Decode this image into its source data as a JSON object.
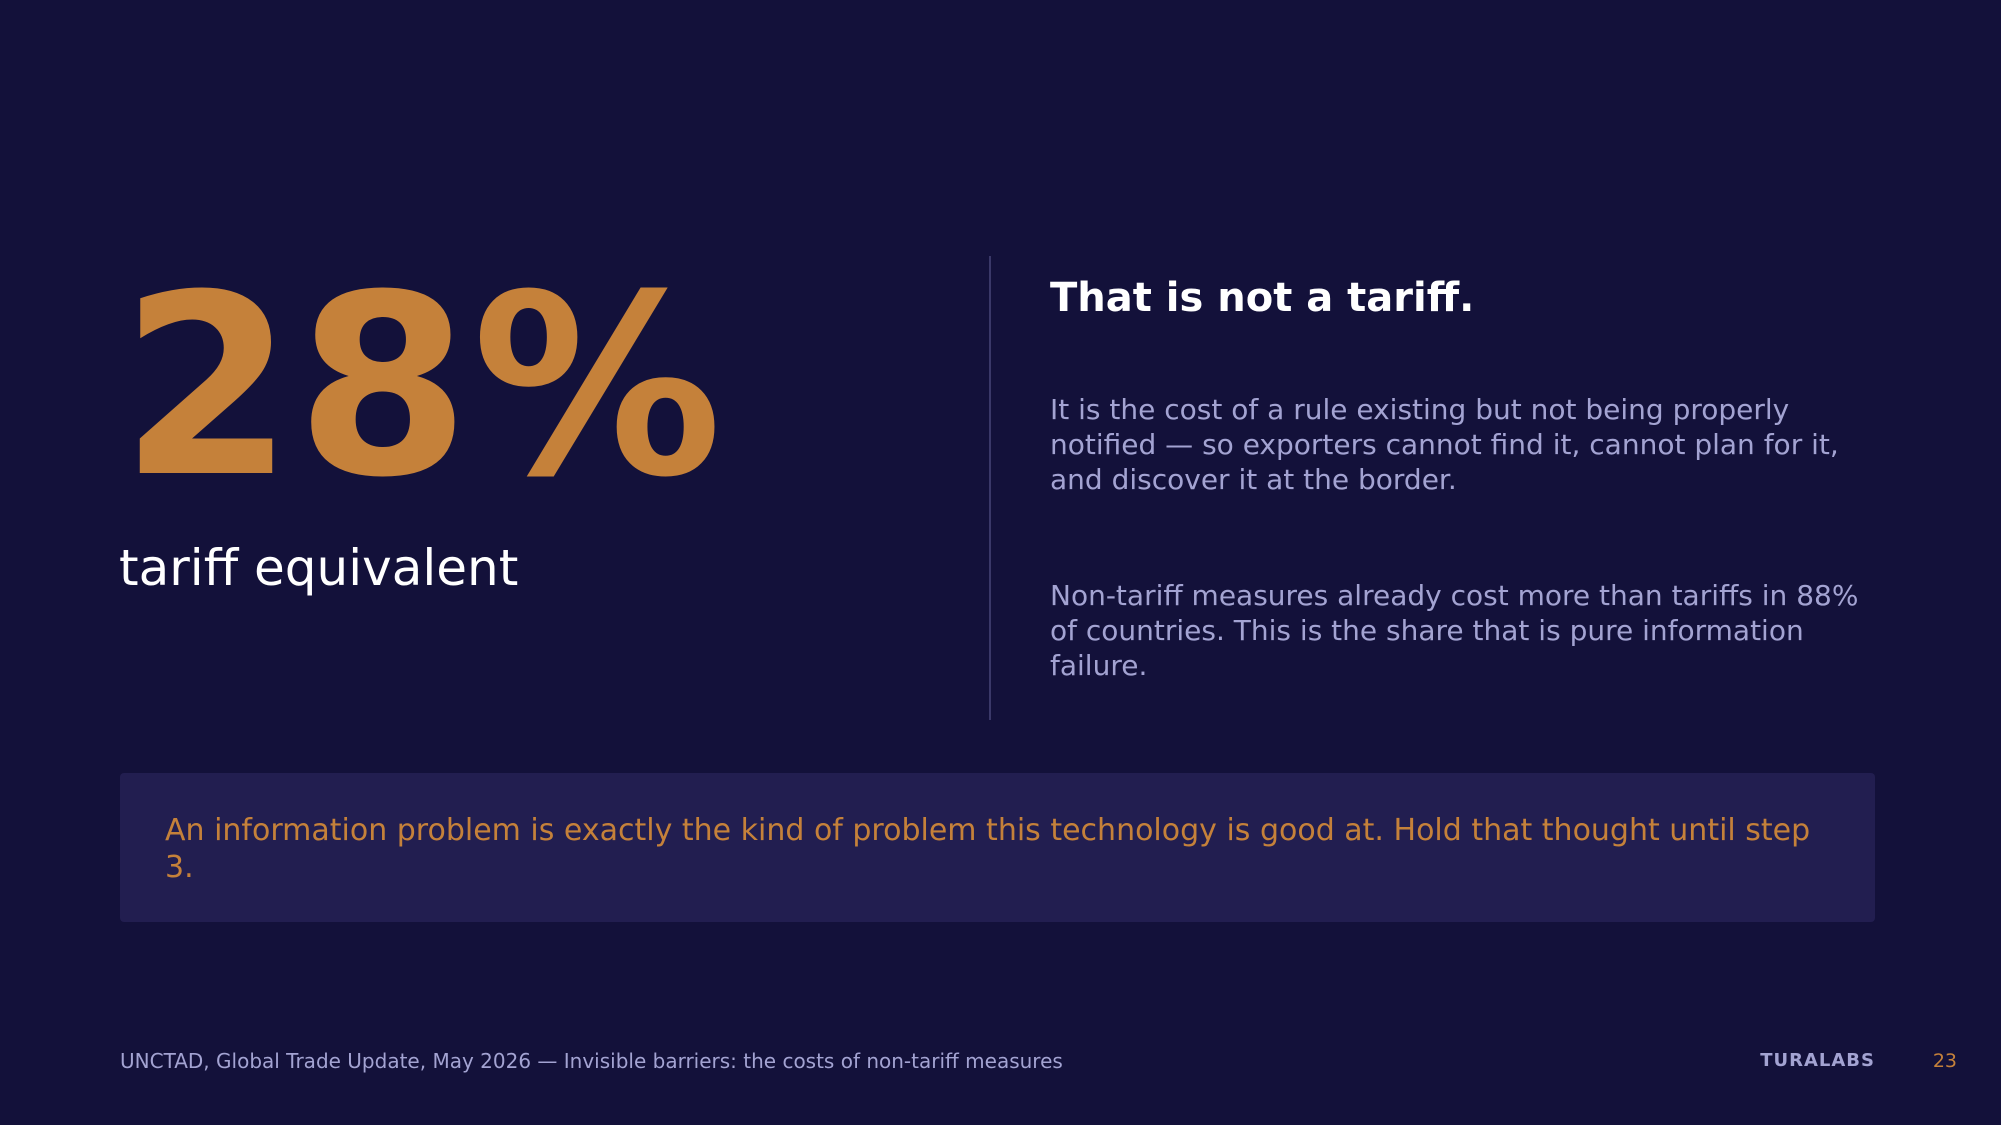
{
  "colors": {
    "background": "#13113a",
    "accent": "#c5813a",
    "callout_background": "#221e50",
    "muted_text": "#a3a3d2",
    "primary_text": "#ffffff"
  },
  "stat": {
    "value": "28%",
    "label": "tariff equivalent"
  },
  "content": {
    "headline": "That is not a tariff.",
    "paragraph_1": "It is the cost of a rule existing but not being properly notified — so exporters cannot find it, cannot plan for it, and discover it at the border.",
    "paragraph_2": "Non-tariff measures already cost more than tariffs in 88% of countries. This is the share that is pure information failure."
  },
  "callout": {
    "text": "An information problem is exactly the kind of problem this technology is good at. Hold that thought until step 3."
  },
  "footer": {
    "source": "UNCTAD, Global Trade Update, May 2026 — Invisible barriers: the costs of non-tariff measures",
    "brand": "TURALABS",
    "page_number": "23"
  }
}
